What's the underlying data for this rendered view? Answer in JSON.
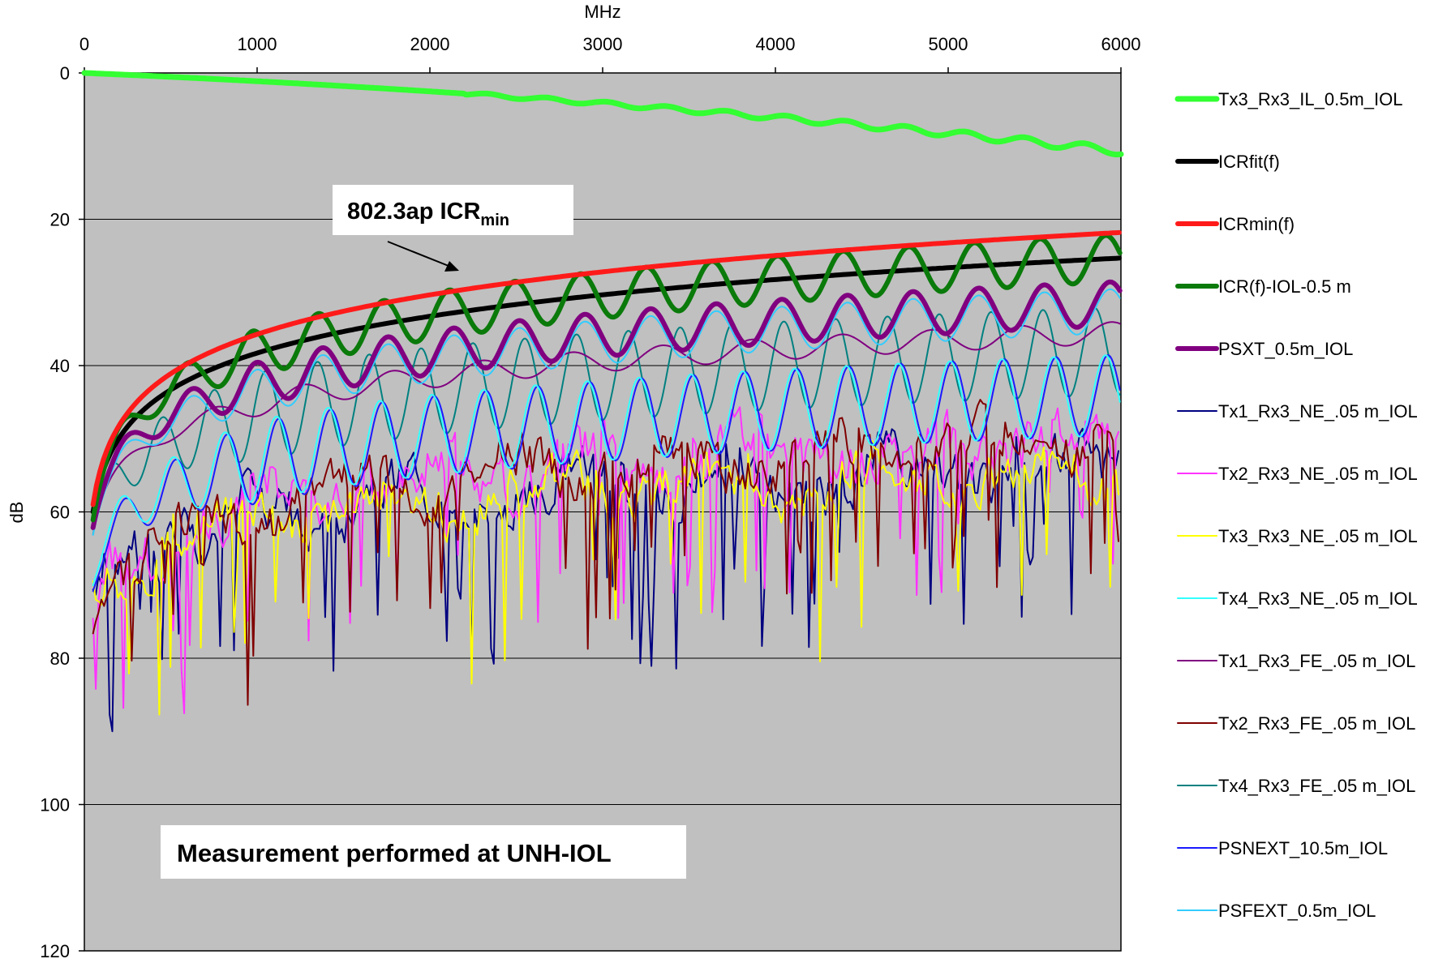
{
  "chart_data": {
    "type": "line",
    "xlabel": "MHz",
    "ylabel": "dB",
    "xlim": [
      0,
      6000
    ],
    "ylim": [
      0,
      120
    ],
    "y_inverted": true,
    "x_axis_position": "top",
    "xticks": [
      0,
      1000,
      2000,
      3000,
      4000,
      5000,
      6000
    ],
    "yticks": [
      0,
      20,
      40,
      60,
      80,
      100,
      120
    ],
    "grid": "horizontal",
    "plot_background": "#c0c0c0",
    "legend_position": "right",
    "annotations": {
      "icr_min_label": "802.3ap ICR",
      "icr_min_subscript": "min",
      "measurement_note": "Measurement performed at UNH-IOL"
    },
    "series": [
      {
        "name": "Tx3_Rx3_IL_0.5m_IOL",
        "color": "#33ff33",
        "width": 7,
        "model": {
          "kind": "il"
        }
      },
      {
        "name": "ICRfit(f)",
        "color": "#000000",
        "width": 6,
        "model": {
          "kind": "log",
          "at50": 60,
          "at6000": 25.3
        }
      },
      {
        "name": "ICRmin(f)",
        "color": "#ff1a1a",
        "width": 6,
        "model": {
          "kind": "log",
          "at50": 59,
          "at6000": 21.8
        }
      },
      {
        "name": "ICR(f)-IOL-0.5 m",
        "color": "#0a7a0a",
        "width": 6,
        "model": {
          "kind": "logrip",
          "at50": 60,
          "at6000": 25.3,
          "amp": 3.2,
          "period": 380,
          "phase": 1.2
        }
      },
      {
        "name": "PSXT_0.5m_IOL",
        "color": "#800080",
        "width": 6,
        "model": {
          "kind": "logrip",
          "at50": 61,
          "at6000": 31.5,
          "amp": 3.0,
          "period": 380,
          "phase": 0.8
        }
      },
      {
        "name": "Tx1_Rx3_NE_.05 m_IOL",
        "color": "#000080",
        "width": 2,
        "model": {
          "kind": "noisy",
          "at50": 72,
          "at6000": 54,
          "amp": 7,
          "seed": 11,
          "deep": 0.1
        }
      },
      {
        "name": "Tx2_Rx3_NE_.05 m_IOL",
        "color": "#ff33ff",
        "width": 2,
        "model": {
          "kind": "noisy",
          "at50": 75,
          "at6000": 50,
          "amp": 7,
          "seed": 23,
          "deep": 0.1
        }
      },
      {
        "name": "Tx3_Rx3_NE_.05 m_IOL",
        "color": "#ffff00",
        "width": 2,
        "model": {
          "kind": "noisy",
          "at50": 73,
          "at6000": 54,
          "amp": 6,
          "seed": 37,
          "deep": 0.08
        }
      },
      {
        "name": "Tx4_Rx3_NE_.05 m_IOL",
        "color": "#33ffff",
        "width": 2,
        "model": {
          "kind": "logrip",
          "at50": 68,
          "at6000": 44,
          "amp": 5.5,
          "period": 300,
          "phase": 0.3
        }
      },
      {
        "name": "Tx1_Rx3_FE_.05 m_IOL",
        "color": "#800080",
        "width": 2,
        "model": {
          "kind": "logrip",
          "at50": 62,
          "at6000": 35.5,
          "amp": 1.5,
          "period": 520,
          "phase": 2.0
        }
      },
      {
        "name": "Tx2_Rx3_FE_.05 m_IOL",
        "color": "#800000",
        "width": 2,
        "model": {
          "kind": "noisy",
          "at50": 76,
          "at6000": 50,
          "amp": 6,
          "seed": 51,
          "deep": 0.08
        }
      },
      {
        "name": "Tx4_Rx3_FE_.05 m_IOL",
        "color": "#008080",
        "width": 2,
        "model": {
          "kind": "logrip",
          "at50": 62,
          "at6000": 38,
          "amp": 6,
          "period": 300,
          "phase": 1.6
        }
      },
      {
        "name": "PSNEXT_10.5m_IOL",
        "color": "#1a1aff",
        "width": 2,
        "model": {
          "kind": "logrip",
          "at50": 69,
          "at6000": 44,
          "amp": 5.5,
          "period": 300,
          "phase": 0.0
        }
      },
      {
        "name": "PSFEXT_0.5m_IOL",
        "color": "#33ccff",
        "width": 2,
        "model": {
          "kind": "logrip",
          "at50": 62,
          "at6000": 32.5,
          "amp": 3.0,
          "period": 380,
          "phase": 0.8
        }
      }
    ]
  }
}
